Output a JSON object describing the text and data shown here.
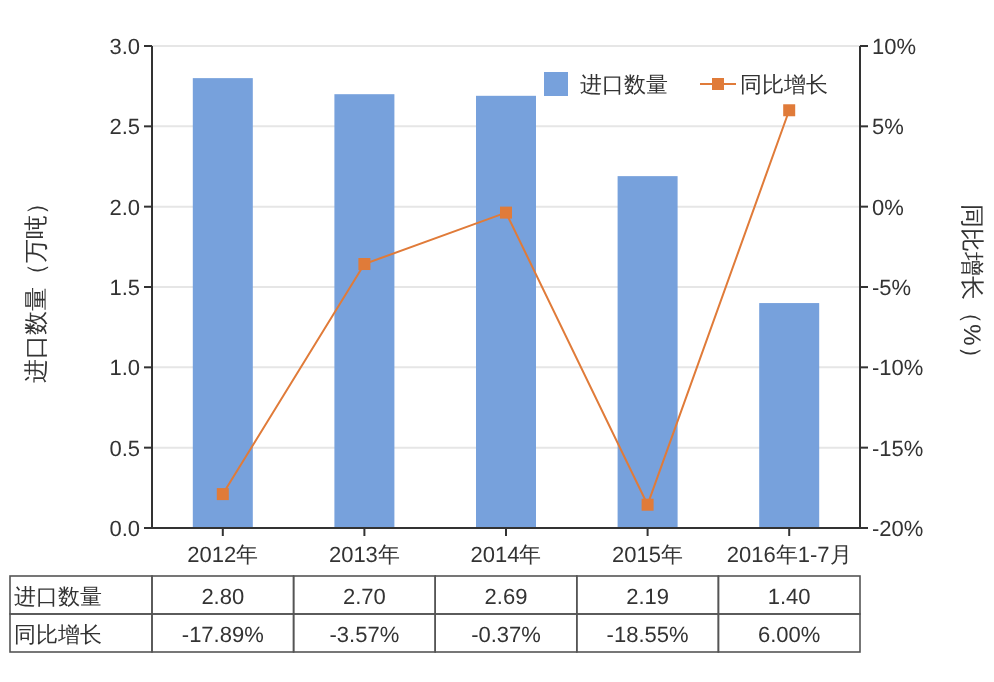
{
  "chart_data": {
    "type": "bar",
    "categories": [
      "2012年",
      "2013年",
      "2014年",
      "2015年",
      "2016年1-7月"
    ],
    "ylabel": "进口数量（万吨）",
    "y2label": "同比增长（%）",
    "ylim": [
      0,
      3
    ],
    "yticks": [
      {
        "value": 0,
        "label": "0.0"
      },
      {
        "value": 0.5,
        "label": "0.5"
      },
      {
        "value": 1,
        "label": "1.0"
      },
      {
        "value": 1.5,
        "label": "1.5"
      },
      {
        "value": 2,
        "label": "2.0"
      },
      {
        "value": 2.5,
        "label": "2.5"
      },
      {
        "value": 3,
        "label": "3.0"
      }
    ],
    "y2lim": [
      -20,
      10
    ],
    "y2ticks": [
      {
        "value": -20,
        "label": "-20%"
      },
      {
        "value": -15,
        "label": "-15%"
      },
      {
        "value": -10,
        "label": "-10%"
      },
      {
        "value": -5,
        "label": "-5%"
      },
      {
        "value": 0,
        "label": "0%"
      },
      {
        "value": 5,
        "label": "5%"
      },
      {
        "value": 10,
        "label": "10%"
      }
    ],
    "grid": "y",
    "legend": "top right",
    "marker": "square",
    "series": [
      {
        "name": "进口数量",
        "color": "#77a1dc",
        "values": [
          2.8,
          2.7,
          2.69,
          2.19,
          1.4
        ],
        "value_labels": [
          "2.80",
          "2.70",
          "2.69",
          "2.19",
          "1.40"
        ]
      },
      {
        "name": "同比增长",
        "type": "line",
        "axis": "y2",
        "color": "#e07b39",
        "values": [
          -17.89,
          -3.57,
          -0.37,
          -18.55,
          6.0
        ],
        "value_labels": [
          "-17.89%",
          "-3.57%",
          "-0.37%",
          "-18.55%",
          "6.00%"
        ]
      }
    ]
  }
}
